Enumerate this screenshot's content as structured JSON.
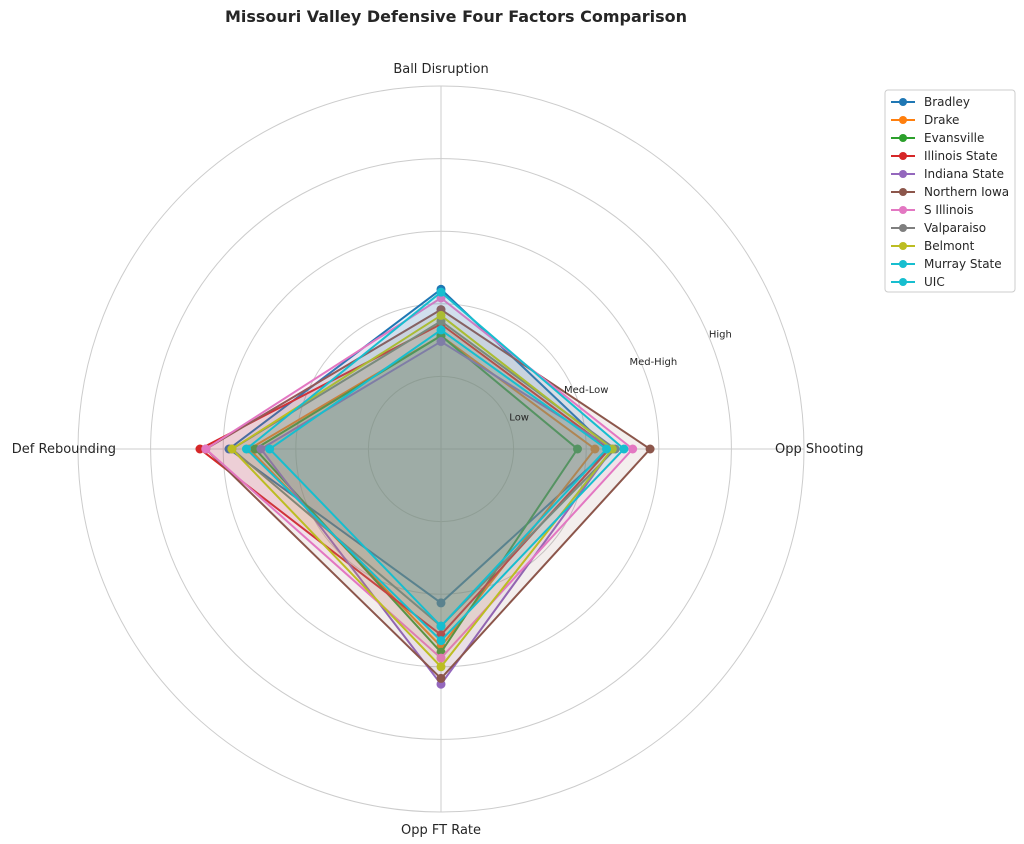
{
  "chart_data": {
    "type": "radar",
    "title": "Missouri Valley Defensive Four Factors Comparison",
    "axes": [
      "Ball Disruption",
      "Opp Shooting",
      "Opp FT Rate",
      "Def Rebounding"
    ],
    "rlim": [
      0,
      1.25
    ],
    "rticks": [
      0.25,
      0.5,
      0.75,
      1.0
    ],
    "rtick_labels": [
      "Low",
      "Med-Low",
      "Med-High",
      "High"
    ],
    "grid": true,
    "legend_position": "top-right",
    "series": [
      {
        "name": "Bradley",
        "color": "#1f77b4",
        "values": [
          0.55,
          0.58,
          0.53,
          0.73
        ]
      },
      {
        "name": "Drake",
        "color": "#ff7f0e",
        "values": [
          0.39,
          0.53,
          0.68,
          0.66
        ]
      },
      {
        "name": "Evansville",
        "color": "#2ca02c",
        "values": [
          0.39,
          0.47,
          0.7,
          0.64
        ]
      },
      {
        "name": "Illinois State",
        "color": "#d62728",
        "values": [
          0.43,
          0.58,
          0.64,
          0.83
        ]
      },
      {
        "name": "Indiana State",
        "color": "#9467bd",
        "values": [
          0.37,
          0.59,
          0.81,
          0.62
        ]
      },
      {
        "name": "Northern Iowa",
        "color": "#8c564b",
        "values": [
          0.48,
          0.72,
          0.79,
          0.81
        ]
      },
      {
        "name": "S Illinois",
        "color": "#e377c2",
        "values": [
          0.52,
          0.66,
          0.72,
          0.81
        ]
      },
      {
        "name": "Valparaiso",
        "color": "#7f7f7f",
        "values": [
          0.44,
          0.6,
          0.61,
          0.72
        ]
      },
      {
        "name": "Belmont",
        "color": "#bcbd22",
        "values": [
          0.46,
          0.59,
          0.75,
          0.72
        ]
      },
      {
        "name": "Murray State",
        "color": "#17becf",
        "values": [
          0.54,
          0.63,
          0.66,
          0.67
        ]
      },
      {
        "name": "UIC",
        "color": "#17becf",
        "values": [
          0.41,
          0.57,
          0.61,
          0.59
        ]
      }
    ]
  }
}
